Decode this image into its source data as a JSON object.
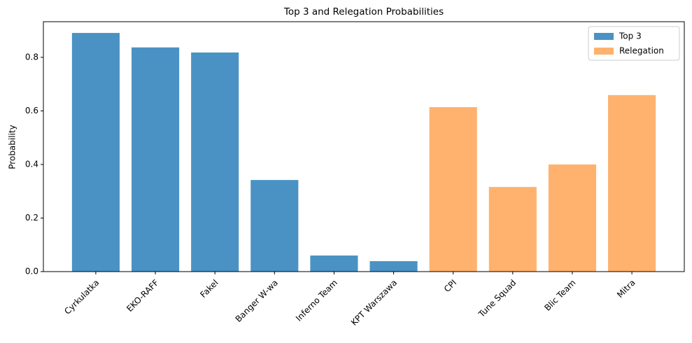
{
  "chart_data": {
    "type": "bar",
    "title": "Top 3 and Relegation Probabilities",
    "y_label": "Probability",
    "categories": [
      "Cyrkulatka",
      "EKO-RAFF",
      "Fakel",
      "Banger W-wa",
      "Inferno Team",
      "KPT Warszawa",
      "CPI",
      "Tune Squad",
      "Blic Team",
      "Mitra"
    ],
    "series": [
      {
        "name": "Top 3",
        "color": "#4a92c3",
        "values": [
          0.891,
          0.837,
          0.818,
          0.342,
          0.06,
          0.039,
          null,
          null,
          null,
          null
        ]
      },
      {
        "name": "Relegation",
        "color": "#ffb26e",
        "values": [
          null,
          null,
          null,
          null,
          null,
          null,
          0.614,
          0.316,
          0.4,
          0.659
        ]
      }
    ],
    "ylim": [
      0,
      0.933
    ],
    "yticks": [
      {
        "value": 0,
        "label": "0.0"
      },
      0.2,
      0.4,
      0.6,
      0.8
    ],
    "legend": "upper right"
  }
}
